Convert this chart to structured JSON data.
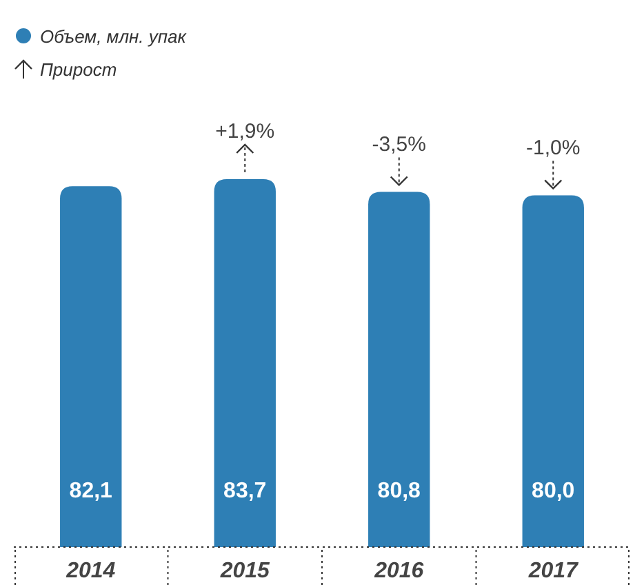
{
  "chart_data": {
    "type": "bar",
    "categories": [
      "2014",
      "2015",
      "2016",
      "2017"
    ],
    "series": [
      {
        "name": "Объем, млн. упак",
        "color": "#2e7fb5",
        "values": [
          82.1,
          83.7,
          80.8,
          80.0
        ],
        "value_labels": [
          "82,1",
          "83,7",
          "80,8",
          "80,0"
        ]
      }
    ],
    "tick_labels": "x",
    "legend": "top left",
    "annotations": [
      "Прирост",
      {
        "text": "+1,9%",
        "x": "2015",
        "y": 83.7
      },
      {
        "text": "-3,5%",
        "x": "2016",
        "y": 80.8
      },
      {
        "text": "-1,0%",
        "x": "2017",
        "y": 80.0
      }
    ]
  }
}
